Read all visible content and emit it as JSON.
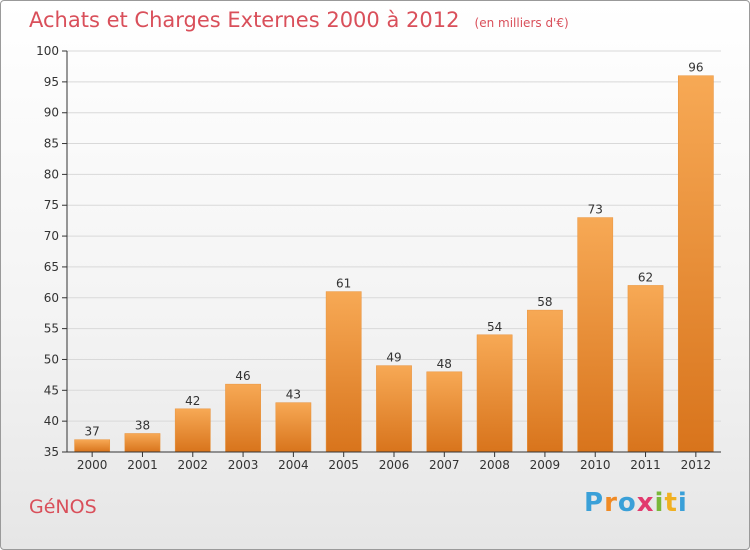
{
  "title": "Achats et Charges Externes 2000 à 2012",
  "subtitle": "(en milliers d'€)",
  "city": "GéNOS",
  "logo": {
    "text": "Proxiti",
    "letters": [
      {
        "ch": "P",
        "color": "#3aa0d8"
      },
      {
        "ch": "r",
        "color": "#f08a24"
      },
      {
        "ch": "o",
        "color": "#3aa0d8"
      },
      {
        "ch": "x",
        "color": "#e23a6e"
      },
      {
        "ch": "i",
        "color": "#7ab83a"
      },
      {
        "ch": "t",
        "color": "#f0b020"
      },
      {
        "ch": "i",
        "color": "#3aa0d8"
      }
    ]
  },
  "colors": {
    "title": "#d94f5a",
    "bar_light": "#f7a955",
    "bar_dark": "#d8741c",
    "grid": "#d9d9d9",
    "axis": "#333333"
  },
  "chart_data": {
    "type": "bar",
    "categories": [
      "2000",
      "2001",
      "2002",
      "2003",
      "2004",
      "2005",
      "2006",
      "2007",
      "2008",
      "2009",
      "2010",
      "2011",
      "2012"
    ],
    "values": [
      37,
      38,
      42,
      46,
      43,
      61,
      49,
      48,
      54,
      58,
      73,
      62,
      96
    ],
    "ylim": [
      35,
      100
    ],
    "yticks": [
      35,
      40,
      45,
      50,
      55,
      60,
      65,
      70,
      75,
      80,
      85,
      90,
      95,
      100
    ],
    "grid": true,
    "data_labels": true
  }
}
